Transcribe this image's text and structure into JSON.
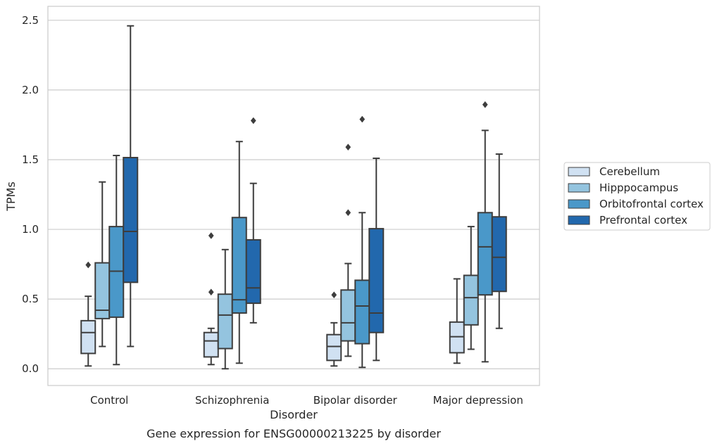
{
  "chart_data": {
    "type": "box",
    "caption": "Gene expression for ENSG00000213225 by disorder",
    "xlabel": "Disorder",
    "ylabel": "TPMs",
    "ylim": [
      -0.12,
      2.6
    ],
    "yticks": [
      "0.0",
      "0.5",
      "1.0",
      "1.5",
      "2.0",
      "2.5"
    ],
    "ytick_values": [
      0.0,
      0.5,
      1.0,
      1.5,
      2.0,
      2.5
    ],
    "grid": "horizontal",
    "legend_position": "right",
    "categories": [
      "Control",
      "Schizophrenia",
      "Bipolar disorder",
      "Major depression"
    ],
    "series": [
      {
        "name": "Cerebellum",
        "color": "#d0e1f2",
        "boxes": [
          {
            "whisker_low": 0.02,
            "q1": 0.11,
            "median": 0.26,
            "q3": 0.345,
            "whisker_high": 0.52,
            "outliers": [
              0.745
            ]
          },
          {
            "whisker_low": 0.03,
            "q1": 0.085,
            "median": 0.2,
            "q3": 0.26,
            "whisker_high": 0.29,
            "outliers": [
              0.955,
              0.55
            ]
          },
          {
            "whisker_low": 0.02,
            "q1": 0.06,
            "median": 0.16,
            "q3": 0.245,
            "whisker_high": 0.33,
            "outliers": [
              0.53
            ]
          },
          {
            "whisker_low": 0.04,
            "q1": 0.115,
            "median": 0.23,
            "q3": 0.335,
            "whisker_high": 0.645,
            "outliers": []
          }
        ]
      },
      {
        "name": "Hipppocampus",
        "color": "#94c4df",
        "boxes": [
          {
            "whisker_low": 0.16,
            "q1": 0.36,
            "median": 0.42,
            "q3": 0.76,
            "whisker_high": 1.34,
            "outliers": []
          },
          {
            "whisker_low": 0.0,
            "q1": 0.145,
            "median": 0.385,
            "q3": 0.535,
            "whisker_high": 0.855,
            "outliers": []
          },
          {
            "whisker_low": 0.09,
            "q1": 0.2,
            "median": 0.33,
            "q3": 0.565,
            "whisker_high": 0.755,
            "outliers": [
              1.59,
              1.12
            ]
          },
          {
            "whisker_low": 0.14,
            "q1": 0.315,
            "median": 0.51,
            "q3": 0.67,
            "whisker_high": 1.02,
            "outliers": []
          }
        ]
      },
      {
        "name": "Orbitofrontal cortex",
        "color": "#4a98c9",
        "boxes": [
          {
            "whisker_low": 0.03,
            "q1": 0.37,
            "median": 0.7,
            "q3": 1.02,
            "whisker_high": 1.53,
            "outliers": []
          },
          {
            "whisker_low": 0.04,
            "q1": 0.4,
            "median": 0.495,
            "q3": 1.085,
            "whisker_high": 1.63,
            "outliers": []
          },
          {
            "whisker_low": 0.01,
            "q1": 0.18,
            "median": 0.45,
            "q3": 0.635,
            "whisker_high": 1.12,
            "outliers": [
              1.79
            ]
          },
          {
            "whisker_low": 0.05,
            "q1": 0.53,
            "median": 0.875,
            "q3": 1.12,
            "whisker_high": 1.71,
            "outliers": [
              1.895
            ]
          }
        ]
      },
      {
        "name": "Prefrontal cortex",
        "color": "#2268ad",
        "boxes": [
          {
            "whisker_low": 0.16,
            "q1": 0.62,
            "median": 0.985,
            "q3": 1.515,
            "whisker_high": 2.46,
            "outliers": []
          },
          {
            "whisker_low": 0.33,
            "q1": 0.47,
            "median": 0.58,
            "q3": 0.925,
            "whisker_high": 1.33,
            "outliers": [
              1.78
            ]
          },
          {
            "whisker_low": 0.06,
            "q1": 0.26,
            "median": 0.4,
            "q3": 1.005,
            "whisker_high": 1.51,
            "outliers": []
          },
          {
            "whisker_low": 0.29,
            "q1": 0.555,
            "median": 0.8,
            "q3": 1.09,
            "whisker_high": 1.54,
            "outliers": []
          }
        ]
      }
    ]
  }
}
